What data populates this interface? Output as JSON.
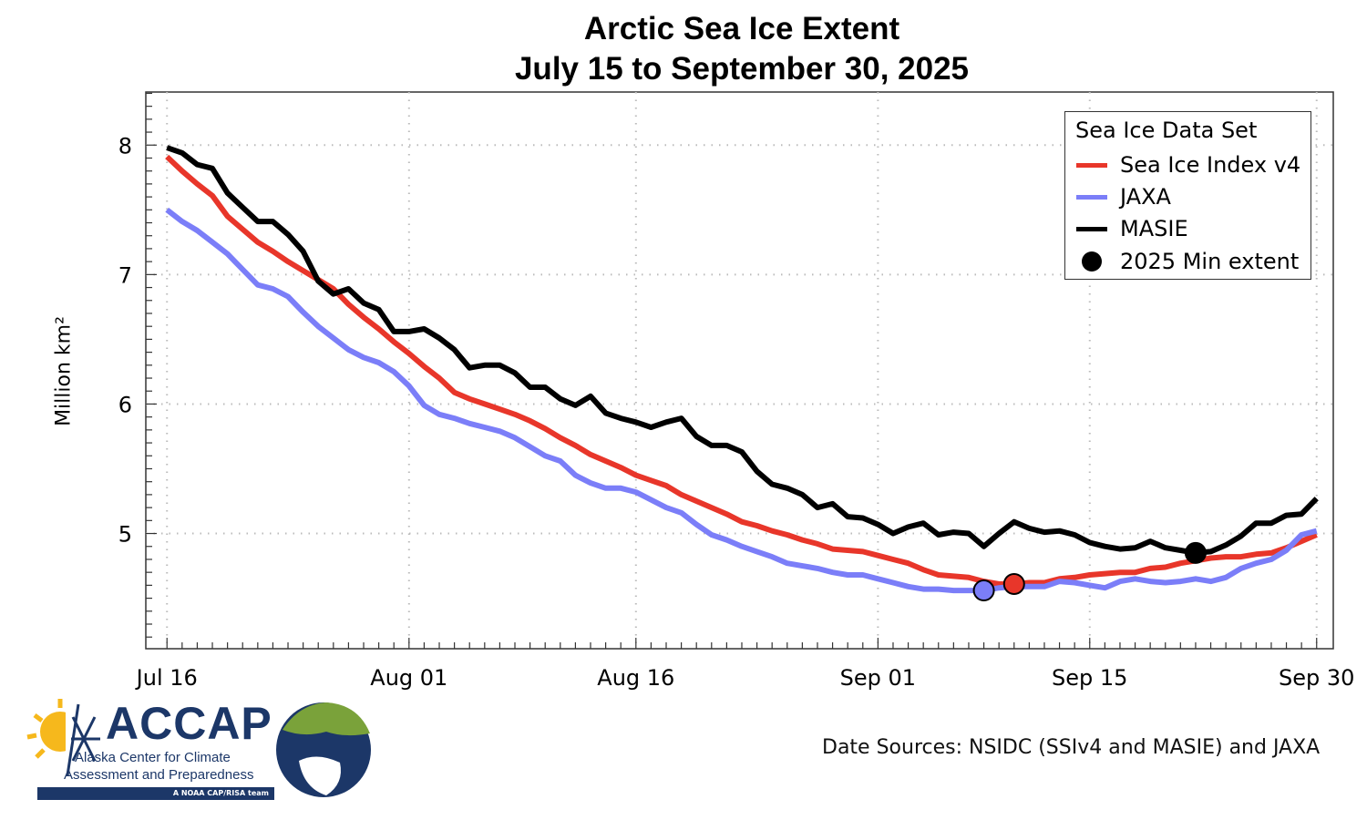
{
  "chart_data": {
    "type": "line",
    "title": "Arctic Sea Ice Extent",
    "subtitle": "July 15 to September 30, 2025",
    "xlabel": "",
    "ylabel": "Million km²",
    "x_unit": "days since Jul 16, 2025",
    "xlim": [
      -1.4,
      77.1
    ],
    "ylim": [
      4.11,
      8.41
    ],
    "grid": true,
    "legend_placement": "top-right",
    "legend_title": "Sea Ice Data Set",
    "x_ticks": [
      {
        "day": 0,
        "label": "Jul 16"
      },
      {
        "day": 16,
        "label": "Aug 01"
      },
      {
        "day": 31,
        "label": "Aug 16"
      },
      {
        "day": 47,
        "label": "Sep 01"
      },
      {
        "day": 61,
        "label": "Sep 15"
      },
      {
        "day": 76,
        "label": "Sep 30"
      }
    ],
    "y_ticks": [
      {
        "value": 5,
        "label": "5"
      },
      {
        "value": 6,
        "label": "6"
      },
      {
        "value": 7,
        "label": "7"
      },
      {
        "value": 8,
        "label": "8"
      }
    ],
    "series": [
      {
        "name": "Sea Ice Index v4",
        "color": "#e8362a",
        "values": [
          7.91,
          7.8,
          7.7,
          7.61,
          7.45,
          7.35,
          7.25,
          7.18,
          7.1,
          7.03,
          6.96,
          6.89,
          6.77,
          6.67,
          6.58,
          6.48,
          6.39,
          6.29,
          6.2,
          6.09,
          6.04,
          6.0,
          5.96,
          5.92,
          5.87,
          5.81,
          5.74,
          5.68,
          5.61,
          5.56,
          5.51,
          5.45,
          5.41,
          5.37,
          5.3,
          5.25,
          5.2,
          5.15,
          5.09,
          5.06,
          5.02,
          4.99,
          4.95,
          4.92,
          4.88,
          4.87,
          4.86,
          4.83,
          4.8,
          4.77,
          4.72,
          4.68,
          4.67,
          4.66,
          4.63,
          4.61,
          4.61,
          4.62,
          4.62,
          4.65,
          4.66,
          4.68,
          4.69,
          4.7,
          4.7,
          4.73,
          4.74,
          4.77,
          4.79,
          4.81,
          4.82,
          4.82,
          4.84,
          4.85,
          4.89,
          4.94,
          4.99
        ]
      },
      {
        "name": "JAXA",
        "color": "#7b7ef8",
        "values": [
          7.5,
          7.41,
          7.34,
          7.25,
          7.16,
          7.04,
          6.92,
          6.89,
          6.83,
          6.71,
          6.6,
          6.51,
          6.42,
          6.36,
          6.32,
          6.25,
          6.14,
          5.99,
          5.92,
          5.89,
          5.85,
          5.82,
          5.79,
          5.74,
          5.67,
          5.6,
          5.56,
          5.45,
          5.39,
          5.35,
          5.35,
          5.32,
          5.26,
          5.2,
          5.16,
          5.07,
          4.99,
          4.95,
          4.9,
          4.86,
          4.82,
          4.77,
          4.75,
          4.73,
          4.7,
          4.68,
          4.68,
          4.65,
          4.62,
          4.59,
          4.57,
          4.57,
          4.56,
          4.56,
          4.56,
          4.58,
          4.59,
          4.59,
          4.59,
          4.63,
          4.62,
          4.6,
          4.58,
          4.63,
          4.65,
          4.63,
          4.62,
          4.63,
          4.65,
          4.63,
          4.66,
          4.73,
          4.77,
          4.8,
          4.87,
          4.99,
          5.02
        ]
      },
      {
        "name": "MASIE",
        "color": "#000000",
        "values": [
          7.98,
          7.94,
          7.85,
          7.82,
          7.63,
          7.52,
          7.41,
          7.41,
          7.31,
          7.18,
          6.95,
          6.85,
          6.89,
          6.78,
          6.73,
          6.56,
          6.56,
          6.58,
          6.51,
          6.42,
          6.28,
          6.3,
          6.3,
          6.24,
          6.13,
          6.13,
          6.04,
          5.99,
          6.06,
          5.93,
          5.89,
          5.86,
          5.82,
          5.86,
          5.89,
          5.75,
          5.68,
          5.68,
          5.63,
          5.48,
          5.38,
          5.35,
          5.3,
          5.2,
          5.23,
          5.13,
          5.12,
          5.07,
          5.0,
          5.05,
          5.08,
          4.99,
          5.01,
          5.0,
          4.9,
          5.0,
          5.09,
          5.04,
          5.01,
          5.02,
          4.99,
          4.93,
          4.9,
          4.88,
          4.89,
          4.94,
          4.89,
          4.87,
          4.85,
          4.86,
          4.91,
          4.98,
          5.08,
          5.08,
          5.14,
          5.15,
          5.27
        ]
      }
    ],
    "min_markers": [
      {
        "series": "JAXA",
        "day": 54,
        "value": 4.56,
        "color": "#7b7ef8"
      },
      {
        "series": "Sea Ice Index v4",
        "day": 56,
        "value": 4.61,
        "color": "#e8362a"
      },
      {
        "series": "MASIE",
        "day": 68,
        "value": 4.85,
        "color": "#000000"
      }
    ],
    "min_marker_legend": "2025 Min extent"
  },
  "source_note": "Date Sources: NSIDC (SSIv4 and MASIE) and JAXA",
  "logo": {
    "name": "ACCAP",
    "line1": "Alaska Center for Climate",
    "line2": "Assessment and Preparedness",
    "tagline": "A NOAA CAP/RISA team"
  }
}
